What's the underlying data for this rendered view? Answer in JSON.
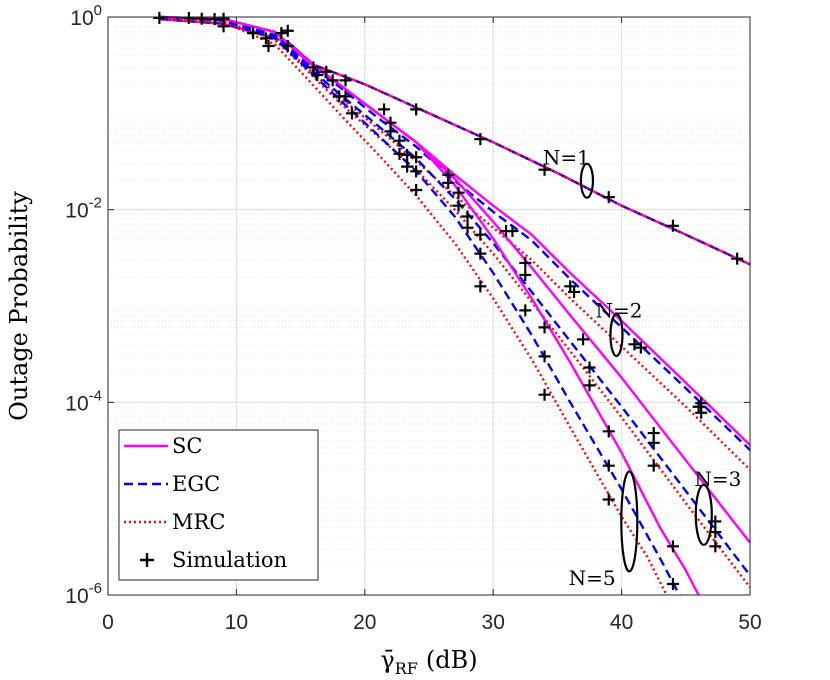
{
  "chart_data": {
    "type": "line",
    "title": "",
    "xlabel": "γ̄",
    "xlabel_sub": "RF",
    "xlabel_unit": "(dB)",
    "ylabel": "Outage Probability",
    "xlim": [
      0,
      50
    ],
    "ylim_log10": [
      -6,
      0
    ],
    "y_scale": "log",
    "grid": true,
    "x_ticks": [
      0,
      10,
      20,
      30,
      40,
      50
    ],
    "x_tick_labels": [
      "0",
      "10",
      "20",
      "30",
      "40",
      "50"
    ],
    "y_ticks": [
      1,
      0.01,
      0.0001,
      1e-06
    ],
    "y_tick_labels": [
      {
        "base": "10",
        "exp": "0"
      },
      {
        "base": "10",
        "exp": "-2"
      },
      {
        "base": "10",
        "exp": "-4"
      },
      {
        "base": "10",
        "exp": "-6"
      }
    ],
    "legend": {
      "position": "bottom-left",
      "entries": [
        {
          "label": "SC",
          "style": "solid",
          "color": "#ff00ff"
        },
        {
          "label": "EGC",
          "style": "dashed",
          "color": "#0000ff"
        },
        {
          "label": "MRC",
          "style": "dotted",
          "color": "#ff0000"
        },
        {
          "label": "Simulation",
          "style": "marker",
          "color": "#000000"
        }
      ]
    },
    "annotations": [
      {
        "label": "N=1",
        "x": 35.7,
        "y": 0.035
      },
      {
        "label": "N=2",
        "x": 39.8,
        "y": 0.0009
      },
      {
        "label": "N=3",
        "x": 47.5,
        "y": 1.6e-05
      },
      {
        "label": "N=5",
        "x": 37.7,
        "y": 1.5e-06
      }
    ],
    "ellipses": [
      {
        "group": "N=1",
        "x": 37.3,
        "y": 0.02
      },
      {
        "group": "N=2",
        "x": 39.6,
        "y": 0.0005
      },
      {
        "group": "N=3",
        "x": 46.4,
        "y": 6.8e-06
      },
      {
        "group": "N=5",
        "x": 40.6,
        "y": 5.8e-06
      }
    ],
    "series": [
      {
        "name": "SC, N=1",
        "style": "solid",
        "color": "#ff00ff",
        "points": [
          [
            4,
            0.95
          ],
          [
            9,
            0.85
          ],
          [
            14,
            0.55
          ],
          [
            16,
            0.32
          ],
          [
            20,
            0.2
          ],
          [
            25,
            0.1
          ],
          [
            30,
            0.05
          ],
          [
            35,
            0.024
          ],
          [
            40,
            0.011
          ],
          [
            45,
            0.0055
          ],
          [
            50,
            0.0027
          ]
        ]
      },
      {
        "name": "EGC, N=1",
        "style": "dashed",
        "color": "#0000ff",
        "points": [
          [
            4,
            0.95
          ],
          [
            9,
            0.85
          ],
          [
            14,
            0.55
          ],
          [
            16,
            0.32
          ],
          [
            20,
            0.2
          ],
          [
            25,
            0.1
          ],
          [
            30,
            0.05
          ],
          [
            35,
            0.024
          ],
          [
            40,
            0.011
          ],
          [
            45,
            0.0055
          ],
          [
            50,
            0.0027
          ]
        ]
      },
      {
        "name": "MRC, N=1",
        "style": "dotted",
        "color": "#ff0000",
        "points": [
          [
            4,
            0.95
          ],
          [
            9,
            0.85
          ],
          [
            14,
            0.55
          ],
          [
            16,
            0.32
          ],
          [
            20,
            0.2
          ],
          [
            25,
            0.1
          ],
          [
            30,
            0.05
          ],
          [
            35,
            0.024
          ],
          [
            40,
            0.011
          ],
          [
            45,
            0.0055
          ],
          [
            50,
            0.0027
          ]
        ]
      },
      {
        "name": "SC, N=2",
        "style": "solid",
        "color": "#ff00ff",
        "points": [
          [
            4,
            1.0
          ],
          [
            9,
            0.95
          ],
          [
            13,
            0.7
          ],
          [
            15.5,
            0.35
          ],
          [
            18,
            0.2
          ],
          [
            21,
            0.1
          ],
          [
            24,
            0.05
          ],
          [
            27,
            0.023
          ],
          [
            30,
            0.011
          ],
          [
            33,
            0.0055
          ],
          [
            36,
            0.0022
          ],
          [
            40,
            0.0007
          ],
          [
            45,
            0.00016
          ],
          [
            50,
            3.6e-05
          ]
        ]
      },
      {
        "name": "EGC, N=2",
        "style": "dashed",
        "color": "#0000ff",
        "points": [
          [
            4,
            1.0
          ],
          [
            9,
            0.92
          ],
          [
            13,
            0.65
          ],
          [
            15.5,
            0.33
          ],
          [
            18,
            0.19
          ],
          [
            21,
            0.09
          ],
          [
            24,
            0.045
          ],
          [
            27,
            0.02
          ],
          [
            30,
            0.0095
          ],
          [
            33,
            0.0048
          ],
          [
            36,
            0.0019
          ],
          [
            40,
            0.0006
          ],
          [
            45,
            0.00014
          ],
          [
            50,
            3.2e-05
          ]
        ]
      },
      {
        "name": "MRC, N=2",
        "style": "dotted",
        "color": "#ff0000",
        "points": [
          [
            4,
            1.0
          ],
          [
            9,
            0.9
          ],
          [
            13,
            0.6
          ],
          [
            15.5,
            0.3
          ],
          [
            18,
            0.15
          ],
          [
            21,
            0.07
          ],
          [
            24,
            0.032
          ],
          [
            27,
            0.014
          ],
          [
            30,
            0.0065
          ],
          [
            33,
            0.003
          ],
          [
            36,
            0.0012
          ],
          [
            40,
            0.00038
          ],
          [
            45,
            9e-05
          ],
          [
            50,
            2e-05
          ]
        ]
      },
      {
        "name": "SC, N=3",
        "style": "solid",
        "color": "#ff00ff",
        "points": [
          [
            4,
            1.0
          ],
          [
            9,
            0.95
          ],
          [
            13,
            0.7
          ],
          [
            15.5,
            0.35
          ],
          [
            18,
            0.2
          ],
          [
            21,
            0.1
          ],
          [
            24,
            0.05
          ],
          [
            27,
            0.021
          ],
          [
            30,
            0.0075
          ],
          [
            33,
            0.0025
          ],
          [
            36,
            0.0008
          ],
          [
            40,
            0.00018
          ],
          [
            45,
            2.5e-05
          ],
          [
            50,
            3.5e-06
          ]
        ]
      },
      {
        "name": "EGC, N=3",
        "style": "dashed",
        "color": "#0000ff",
        "points": [
          [
            4,
            1.0
          ],
          [
            9,
            0.92
          ],
          [
            13,
            0.62
          ],
          [
            15.5,
            0.31
          ],
          [
            18,
            0.16
          ],
          [
            21,
            0.075
          ],
          [
            24,
            0.034
          ],
          [
            27,
            0.013
          ],
          [
            30,
            0.0045
          ],
          [
            33,
            0.0014
          ],
          [
            36,
            0.00043
          ],
          [
            40,
            9e-05
          ],
          [
            45,
            1.2e-05
          ],
          [
            50,
            1.6e-06
          ]
        ]
      },
      {
        "name": "MRC, N=3",
        "style": "dotted",
        "color": "#ff0000",
        "points": [
          [
            4,
            1.0
          ],
          [
            9,
            0.9
          ],
          [
            13,
            0.58
          ],
          [
            15.5,
            0.28
          ],
          [
            18,
            0.13
          ],
          [
            21,
            0.058
          ],
          [
            24,
            0.026
          ],
          [
            27,
            0.01
          ],
          [
            30,
            0.0035
          ],
          [
            33,
            0.0011
          ],
          [
            36,
            0.00034
          ],
          [
            40,
            7e-05
          ],
          [
            45,
            9e-06
          ],
          [
            50,
            1.2e-06
          ]
        ]
      },
      {
        "name": "SC, N=5",
        "style": "solid",
        "color": "#ff00ff",
        "points": [
          [
            4,
            1.0
          ],
          [
            9,
            0.95
          ],
          [
            13,
            0.7
          ],
          [
            15.5,
            0.36
          ],
          [
            18,
            0.2
          ],
          [
            21,
            0.1
          ],
          [
            24,
            0.05
          ],
          [
            27,
            0.018
          ],
          [
            30,
            0.005
          ],
          [
            33,
            0.0012
          ],
          [
            36,
            0.00026
          ],
          [
            40,
            3e-05
          ],
          [
            43,
            5e-06
          ],
          [
            45,
            1.8e-06
          ],
          [
            46,
            1e-06
          ]
        ]
      },
      {
        "name": "EGC, N=5",
        "style": "dashed",
        "color": "#0000ff",
        "points": [
          [
            4,
            1.0
          ],
          [
            9,
            0.92
          ],
          [
            13,
            0.6
          ],
          [
            15.5,
            0.29
          ],
          [
            18,
            0.14
          ],
          [
            21,
            0.06
          ],
          [
            24,
            0.025
          ],
          [
            27,
            0.0085
          ],
          [
            30,
            0.0022
          ],
          [
            33,
            0.0005
          ],
          [
            36,
            0.0001
          ],
          [
            40,
            1.25e-05
          ],
          [
            43,
            2.4e-06
          ],
          [
            44.5,
            1e-06
          ]
        ]
      },
      {
        "name": "MRC, N=5",
        "style": "dotted",
        "color": "#ff0000",
        "points": [
          [
            4,
            1.0
          ],
          [
            9,
            0.88
          ],
          [
            13,
            0.52
          ],
          [
            15.5,
            0.23
          ],
          [
            18,
            0.1
          ],
          [
            21,
            0.038
          ],
          [
            24,
            0.014
          ],
          [
            27,
            0.0045
          ],
          [
            30,
            0.0012
          ],
          [
            33,
            0.00028
          ],
          [
            36,
            5.5e-05
          ],
          [
            40,
            6.5e-06
          ],
          [
            42,
            2.5e-06
          ],
          [
            43.5,
            1e-06
          ]
        ]
      }
    ],
    "simulation_points": [
      [
        4,
        0.98
      ],
      [
        6.3,
        0.98
      ],
      [
        7.3,
        0.96
      ],
      [
        8.3,
        0.95
      ],
      [
        9,
        0.96
      ],
      [
        9,
        0.8
      ],
      [
        11.3,
        0.68
      ],
      [
        12.3,
        0.6
      ],
      [
        12.5,
        0.5
      ],
      [
        13.5,
        0.68
      ],
      [
        14,
        0.72
      ],
      [
        14,
        0.5
      ],
      [
        16,
        0.3
      ],
      [
        16.3,
        0.25
      ],
      [
        17,
        0.27
      ],
      [
        17.5,
        0.22
      ],
      [
        18,
        0.15
      ],
      [
        18.5,
        0.22
      ],
      [
        18.5,
        0.15
      ],
      [
        19,
        0.1
      ],
      [
        21.5,
        0.11
      ],
      [
        24,
        0.11
      ],
      [
        29,
        0.054
      ],
      [
        34,
        0.026
      ],
      [
        39,
        0.0135
      ],
      [
        44,
        0.0068
      ],
      [
        49,
        0.0031
      ],
      [
        22,
        0.08
      ],
      [
        22,
        0.065
      ],
      [
        22.7,
        0.052
      ],
      [
        22.7,
        0.038
      ],
      [
        23.3,
        0.037
      ],
      [
        23.3,
        0.028
      ],
      [
        24,
        0.035
      ],
      [
        24,
        0.025
      ],
      [
        24,
        0.016
      ],
      [
        26.5,
        0.023
      ],
      [
        26.5,
        0.019
      ],
      [
        27.3,
        0.015
      ],
      [
        27.3,
        0.011
      ],
      [
        28,
        0.0085
      ],
      [
        28,
        0.0065
      ],
      [
        29,
        0.0055
      ],
      [
        29,
        0.0035
      ],
      [
        29,
        0.0016
      ],
      [
        31,
        0.006
      ],
      [
        31.5,
        0.006
      ],
      [
        32.5,
        0.0028
      ],
      [
        32.5,
        0.0021
      ],
      [
        32.5,
        0.0009
      ],
      [
        34,
        0.0006
      ],
      [
        34,
        0.0003
      ],
      [
        34,
        0.00012
      ],
      [
        36,
        0.0016
      ],
      [
        36.3,
        0.0014
      ],
      [
        37,
        0.00045
      ],
      [
        37.5,
        0.00023
      ],
      [
        37.5,
        0.00015
      ],
      [
        39,
        5e-05
      ],
      [
        39,
        2.2e-05
      ],
      [
        39,
        9.8e-06
      ],
      [
        41,
        0.0004
      ],
      [
        41.5,
        0.00037
      ],
      [
        42.5,
        4.8e-05
      ],
      [
        42.5,
        3.8e-05
      ],
      [
        42.5,
        2.2e-05
      ],
      [
        44,
        3.2e-06
      ],
      [
        44,
        1.3e-06
      ],
      [
        46,
        9e-05
      ],
      [
        46.2,
        9.8e-05
      ],
      [
        46.2,
        7.8e-05
      ],
      [
        47.3,
        5.8e-06
      ],
      [
        47.3,
        4.5e-06
      ],
      [
        47.3,
        3.2e-06
      ]
    ]
  }
}
